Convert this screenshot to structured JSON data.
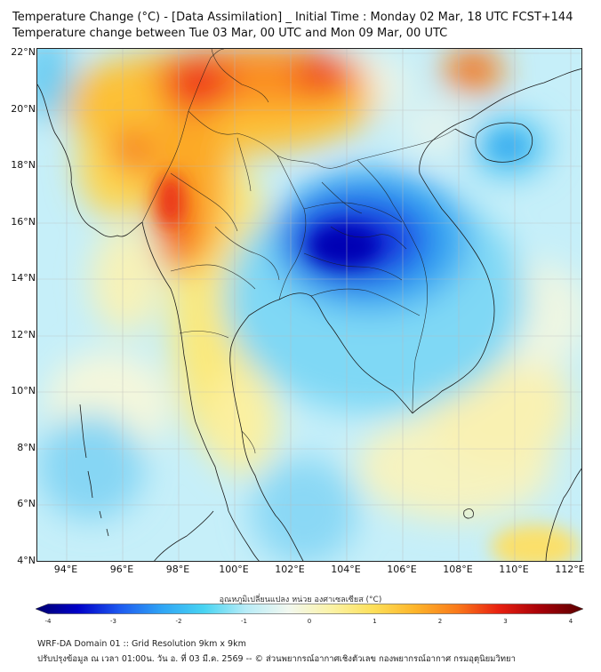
{
  "header": {
    "title_line1": "Temperature Change (°C) - [Data Assimilation] _ Initial Time : Monday 02 Mar, 18 UTC FCST+144",
    "title_line2": "Temperature change between Tue 03 Mar, 00 UTC and Mon 09 Mar, 00 UTC"
  },
  "map": {
    "lat_labels": [
      "22°N",
      "20°N",
      "18°N",
      "16°N",
      "14°N",
      "12°N",
      "10°N",
      "8°N",
      "6°N",
      "4°N"
    ],
    "lon_labels": [
      "94°E",
      "96°E",
      "98°E",
      "100°E",
      "102°E",
      "104°E",
      "106°E",
      "108°E",
      "110°E",
      "112°E"
    ]
  },
  "colorbar": {
    "title": "อุณหภูมิเปลี่ยนแปลง หน่วย องศาเซลเซียส (°C)",
    "ticks": [
      "-4",
      "-3",
      "-2",
      "-1",
      "0",
      "1",
      "2",
      "3",
      "4"
    ],
    "range": [
      -4,
      4
    ],
    "colors": [
      "#00006e",
      "#0000c8",
      "#1e5af0",
      "#2fa5f5",
      "#48d4f2",
      "#b8ecf7",
      "#f2f8f0",
      "#fbf3a8",
      "#fde05a",
      "#fdb52a",
      "#fa7a1a",
      "#e82010",
      "#a50008",
      "#5a0000"
    ]
  },
  "footer": {
    "line1": "WRF-DA Domain 01 :: Grid Resolution 9km x 9km",
    "line2": "ปรับปรุงข้อมูล ณ เวลา 01:00น. วัน อ. ที่ 03 มี.ค. 2569 -- © ส่วนพยากรณ์อากาศเชิงตัวเลข กองพยากรณ์อากาศ กรมอุตุนิยมวิทยา"
  }
}
